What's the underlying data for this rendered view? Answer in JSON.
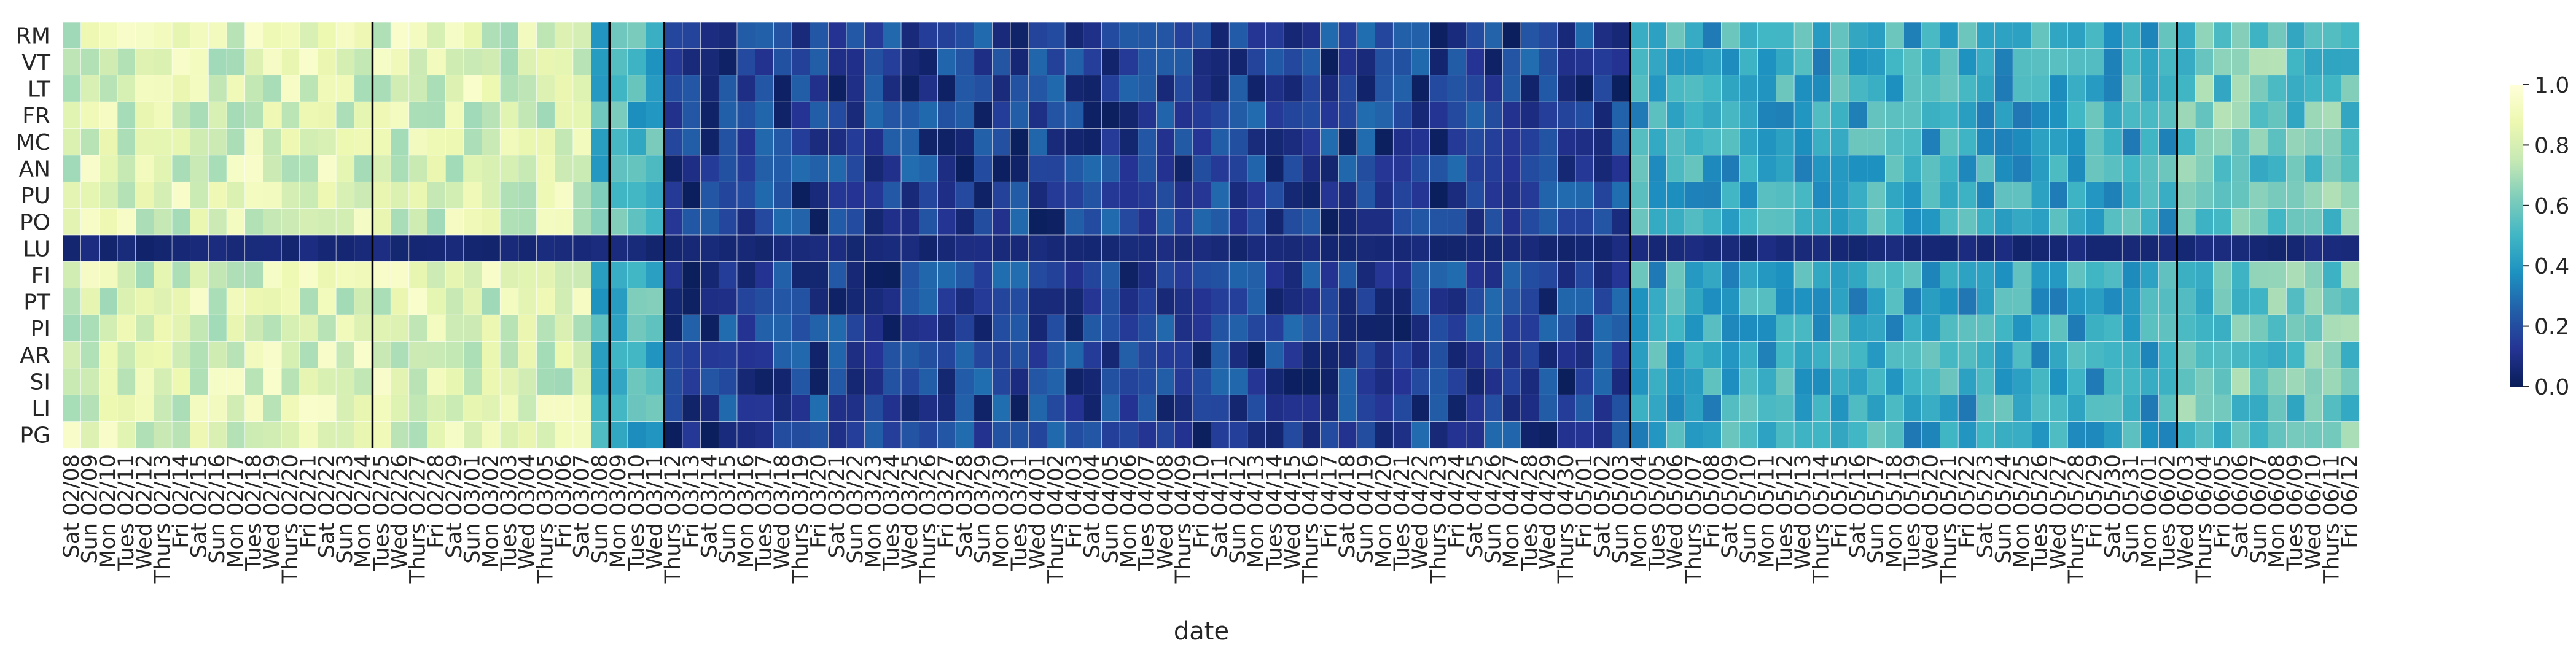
{
  "chart_data": {
    "type": "heatmap",
    "title": "",
    "xlabel": "date",
    "ylabel": "",
    "rows": [
      "RM",
      "VT",
      "LT",
      "FR",
      "MC",
      "AN",
      "PU",
      "PO",
      "LU",
      "FI",
      "PT",
      "PI",
      "AR",
      "SI",
      "LI",
      "PG"
    ],
    "x_start_date": "2020-02-08",
    "x_end_date": "2020-06-12",
    "x_tick_labels": [
      "Sat 02/08",
      "Sun 02/09",
      "Mon 02/10",
      "Tues 02/11",
      "Wed 02/12",
      "Thurs 02/13",
      "Fri 02/14",
      "Sat 02/15",
      "Sun 02/16",
      "Mon 02/17",
      "Tues 02/18",
      "Wed 02/19",
      "Thurs 02/20",
      "Fri 02/21",
      "Sat 02/22",
      "Sun 02/23",
      "Mon 02/24",
      "Tues 02/25",
      "Wed 02/26",
      "Thurs 02/27",
      "Fri 02/28",
      "Sat 02/29",
      "Sun 03/01",
      "Mon 03/02",
      "Tues 03/03",
      "Wed 03/04",
      "Thurs 03/05",
      "Fri 03/06",
      "Sat 03/07",
      "Sun 03/08",
      "Mon 03/09",
      "Tues 03/10",
      "Wed 03/11",
      "Thurs 03/12",
      "Fri 03/13",
      "Sat 03/14",
      "Sun 03/15",
      "Mon 03/16",
      "Tues 03/17",
      "Wed 03/18",
      "Thurs 03/19",
      "Fri 03/20",
      "Sat 03/21",
      "Sun 03/22",
      "Mon 03/23",
      "Tues 03/24",
      "Wed 03/25",
      "Thurs 03/26",
      "Fri 03/27",
      "Sat 03/28",
      "Sun 03/29",
      "Mon 03/30",
      "Tues 03/31",
      "Wed 04/01",
      "Thurs 04/02",
      "Fri 04/03",
      "Sat 04/04",
      "Sun 04/05",
      "Mon 04/06",
      "Tues 04/07",
      "Wed 04/08",
      "Thurs 04/09",
      "Fri 04/10",
      "Sat 04/11",
      "Sun 04/12",
      "Mon 04/13",
      "Tues 04/14",
      "Wed 04/15",
      "Thurs 04/16",
      "Fri 04/17",
      "Sat 04/18",
      "Sun 04/19",
      "Mon 04/20",
      "Tues 04/21",
      "Wed 04/22",
      "Thurs 04/23",
      "Fri 04/24",
      "Sat 04/25",
      "Sun 04/26",
      "Mon 04/27",
      "Tues 04/28",
      "Wed 04/29",
      "Thurs 04/30",
      "Fri 05/01",
      "Sat 05/02",
      "Sun 05/03",
      "Mon 05/04",
      "Tues 05/05",
      "Wed 05/06",
      "Thurs 05/07",
      "Fri 05/08",
      "Sat 05/09",
      "Sun 05/10",
      "Mon 05/11",
      "Tues 05/12",
      "Wed 05/13",
      "Thurs 05/14",
      "Fri 05/15",
      "Sat 05/16",
      "Sun 05/17",
      "Mon 05/18",
      "Tues 05/19",
      "Wed 05/20",
      "Thurs 05/21",
      "Fri 05/22",
      "Sat 05/23",
      "Sun 05/24",
      "Mon 05/25",
      "Tues 05/26",
      "Wed 05/27",
      "Thurs 05/28",
      "Fri 05/29",
      "Sat 05/30",
      "Sun 05/31",
      "Mon 06/01",
      "Tues 06/02",
      "Wed 06/03",
      "Thurs 06/04",
      "Fri 06/05",
      "Sat 06/06",
      "Sun 06/07",
      "Mon 06/08",
      "Tues 06/09",
      "Wed 06/10",
      "Thurs 06/11",
      "Fri 06/12"
    ],
    "vertical_markers": [
      "Tues 02/25",
      "Mon 03/09",
      "Thurs 03/12",
      "Mon 05/04",
      "Wed 06/03"
    ],
    "colorbar": {
      "colormap": "YlGnBu_r",
      "range": [
        0.0,
        1.0
      ],
      "tick_labels": [
        "0.0",
        "0.2",
        "0.4",
        "0.6",
        "0.8",
        "1.0"
      ],
      "stops": [
        "#081d58",
        "#253494",
        "#225ea8",
        "#1d91c0",
        "#41b6c4",
        "#7fcdbb",
        "#c7e9b4",
        "#edf8b1",
        "#ffffd9"
      ]
    },
    "phases": [
      {
        "from": "Sat 02/08",
        "to": "Sat 03/07",
        "approx_value": 0.82
      },
      {
        "from": "Sun 03/08",
        "to": "Wed 03/11",
        "approx_value": 0.5
      },
      {
        "from": "Thurs 03/12",
        "to": "Sun 05/03",
        "approx_value": 0.15
      },
      {
        "from": "Mon 05/04",
        "to": "Tues 06/02",
        "approx_value": 0.45
      },
      {
        "from": "Wed 06/03",
        "to": "Fri 06/12",
        "approx_value": 0.58
      }
    ],
    "row_notes": {
      "LU": "approx_value 0.05 on most days after Sun 02/09"
    },
    "grid": false,
    "legend": "right colorbar"
  }
}
